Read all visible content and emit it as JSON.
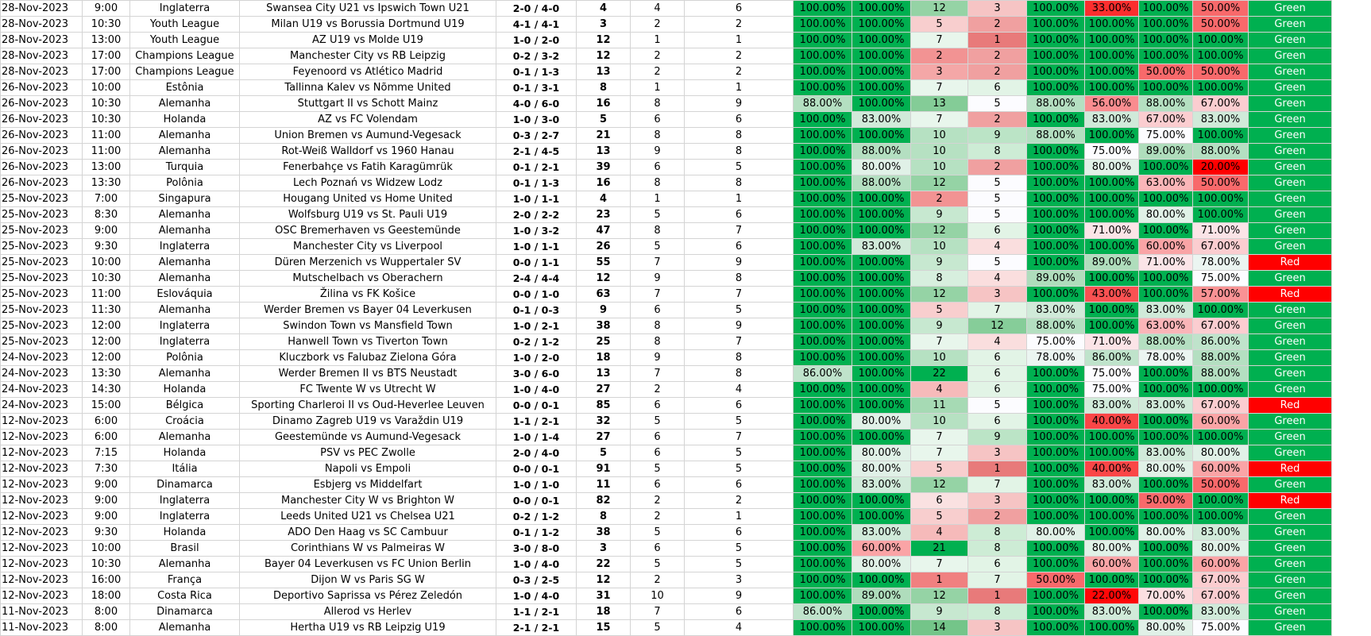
{
  "colors": {
    "green_strong": "#00b050",
    "green_mid": "#63be7b",
    "red_strong": "#ff0000",
    "result_green": "#00b050",
    "result_red": "#ff0000"
  },
  "rows": [
    {
      "date": "28-Nov-2023",
      "time": "9:00",
      "league": "Inglaterra",
      "match": "Swansea City U21 vs Ipswich Town U21",
      "score": "2-0 / 4-0",
      "odd": "4",
      "a": "4",
      "b": "6",
      "p1": "100.00%",
      "p2": "100.00%",
      "n1": "12",
      "n2": "3",
      "p3": "100.00%",
      "p4": "33.00%",
      "p5": "100.00%",
      "p6": "50.00%",
      "result": "Green"
    },
    {
      "date": "28-Nov-2023",
      "time": "10:30",
      "league": "Youth League",
      "match": "Milan U19 vs Borussia Dortmund U19",
      "score": "4-1 / 4-1",
      "odd": "3",
      "a": "2",
      "b": "2",
      "p1": "100.00%",
      "p2": "100.00%",
      "n1": "5",
      "n2": "2",
      "p3": "100.00%",
      "p4": "100.00%",
      "p5": "100.00%",
      "p6": "50.00%",
      "result": "Green"
    },
    {
      "date": "28-Nov-2023",
      "time": "13:00",
      "league": "Youth League",
      "match": "AZ U19 vs Molde U19",
      "score": "1-0 / 2-0",
      "odd": "12",
      "a": "1",
      "b": "1",
      "p1": "100.00%",
      "p2": "100.00%",
      "n1": "7",
      "n2": "1",
      "p3": "100.00%",
      "p4": "100.00%",
      "p5": "100.00%",
      "p6": "100.00%",
      "result": "Green"
    },
    {
      "date": "28-Nov-2023",
      "time": "17:00",
      "league": "Champions League",
      "match": "Manchester City vs RB Leipzig",
      "score": "0-2 / 3-2",
      "odd": "12",
      "a": "2",
      "b": "2",
      "p1": "100.00%",
      "p2": "100.00%",
      "n1": "2",
      "n2": "2",
      "p3": "100.00%",
      "p4": "100.00%",
      "p5": "100.00%",
      "p6": "100.00%",
      "result": "Green"
    },
    {
      "date": "28-Nov-2023",
      "time": "17:00",
      "league": "Champions League",
      "match": "Feyenoord vs Atlético Madrid",
      "score": "0-1 / 1-3",
      "odd": "13",
      "a": "2",
      "b": "2",
      "p1": "100.00%",
      "p2": "100.00%",
      "n1": "3",
      "n2": "2",
      "p3": "100.00%",
      "p4": "100.00%",
      "p5": "50.00%",
      "p6": "50.00%",
      "result": "Green"
    },
    {
      "date": "26-Nov-2023",
      "time": "10:00",
      "league": "Estônia",
      "match": "Tallinna Kalev vs Nõmme United",
      "score": "0-1 / 3-1",
      "odd": "8",
      "a": "1",
      "b": "1",
      "p1": "100.00%",
      "p2": "100.00%",
      "n1": "7",
      "n2": "6",
      "p3": "100.00%",
      "p4": "100.00%",
      "p5": "100.00%",
      "p6": "100.00%",
      "result": "Green"
    },
    {
      "date": "26-Nov-2023",
      "time": "10:30",
      "league": "Alemanha",
      "match": "Stuttgart II vs Schott Mainz",
      "score": "4-0 / 6-0",
      "odd": "16",
      "a": "8",
      "b": "9",
      "p1": "88.00%",
      "p2": "100.00%",
      "n1": "13",
      "n2": "5",
      "p3": "88.00%",
      "p4": "56.00%",
      "p5": "88.00%",
      "p6": "67.00%",
      "result": "Green"
    },
    {
      "date": "26-Nov-2023",
      "time": "10:30",
      "league": "Holanda",
      "match": "AZ vs FC Volendam",
      "score": "1-0 / 3-0",
      "odd": "5",
      "a": "6",
      "b": "6",
      "p1": "100.00%",
      "p2": "83.00%",
      "n1": "7",
      "n2": "2",
      "p3": "100.00%",
      "p4": "83.00%",
      "p5": "67.00%",
      "p6": "83.00%",
      "result": "Green"
    },
    {
      "date": "26-Nov-2023",
      "time": "11:00",
      "league": "Alemanha",
      "match": "Union Bremen vs Aumund-Vegesack",
      "score": "0-3 / 2-7",
      "odd": "21",
      "a": "8",
      "b": "8",
      "p1": "100.00%",
      "p2": "100.00%",
      "n1": "10",
      "n2": "9",
      "p3": "88.00%",
      "p4": "100.00%",
      "p5": "75.00%",
      "p6": "100.00%",
      "result": "Green"
    },
    {
      "date": "26-Nov-2023",
      "time": "11:00",
      "league": "Alemanha",
      "match": "Rot-Weiß Walldorf vs 1960 Hanau",
      "score": "2-1 / 4-5",
      "odd": "13",
      "a": "9",
      "b": "8",
      "p1": "100.00%",
      "p2": "88.00%",
      "n1": "10",
      "n2": "8",
      "p3": "100.00%",
      "p4": "75.00%",
      "p5": "89.00%",
      "p6": "88.00%",
      "result": "Green"
    },
    {
      "date": "26-Nov-2023",
      "time": "13:00",
      "league": "Turquia",
      "match": "Fenerbahçe vs Fatih Karagümrük",
      "score": "0-1 / 2-1",
      "odd": "39",
      "a": "6",
      "b": "5",
      "p1": "100.00%",
      "p2": "80.00%",
      "n1": "10",
      "n2": "2",
      "p3": "100.00%",
      "p4": "80.00%",
      "p5": "100.00%",
      "p6": "20.00%",
      "result": "Green"
    },
    {
      "date": "26-Nov-2023",
      "time": "13:30",
      "league": "Polônia",
      "match": "Lech Poznań vs Widzew Lodz",
      "score": "0-1 / 1-3",
      "odd": "16",
      "a": "8",
      "b": "8",
      "p1": "100.00%",
      "p2": "88.00%",
      "n1": "12",
      "n2": "5",
      "p3": "100.00%",
      "p4": "100.00%",
      "p5": "63.00%",
      "p6": "50.00%",
      "result": "Green"
    },
    {
      "date": "25-Nov-2023",
      "time": "7:00",
      "league": "Singapura",
      "match": "Hougang United vs Home United",
      "score": "1-0 / 1-1",
      "odd": "4",
      "a": "1",
      "b": "1",
      "p1": "100.00%",
      "p2": "100.00%",
      "n1": "2",
      "n2": "5",
      "p3": "100.00%",
      "p4": "100.00%",
      "p5": "100.00%",
      "p6": "100.00%",
      "result": "Green"
    },
    {
      "date": "25-Nov-2023",
      "time": "8:30",
      "league": "Alemanha",
      "match": "Wolfsburg U19 vs St. Pauli U19",
      "score": "2-0 / 2-2",
      "odd": "23",
      "a": "5",
      "b": "6",
      "p1": "100.00%",
      "p2": "100.00%",
      "n1": "9",
      "n2": "5",
      "p3": "100.00%",
      "p4": "100.00%",
      "p5": "80.00%",
      "p6": "100.00%",
      "result": "Green"
    },
    {
      "date": "25-Nov-2023",
      "time": "9:00",
      "league": "Alemanha",
      "match": "OSC Bremerhaven vs Geestemünde",
      "score": "1-0 / 3-2",
      "odd": "47",
      "a": "8",
      "b": "7",
      "p1": "100.00%",
      "p2": "100.00%",
      "n1": "12",
      "n2": "6",
      "p3": "100.00%",
      "p4": "71.00%",
      "p5": "100.00%",
      "p6": "71.00%",
      "result": "Green"
    },
    {
      "date": "25-Nov-2023",
      "time": "9:30",
      "league": "Inglaterra",
      "match": "Manchester City vs Liverpool",
      "score": "1-0 / 1-1",
      "odd": "26",
      "a": "5",
      "b": "6",
      "p1": "100.00%",
      "p2": "83.00%",
      "n1": "10",
      "n2": "4",
      "p3": "100.00%",
      "p4": "100.00%",
      "p5": "60.00%",
      "p6": "67.00%",
      "result": "Green"
    },
    {
      "date": "25-Nov-2023",
      "time": "10:00",
      "league": "Alemanha",
      "match": "Düren Merzenich vs Wuppertaler SV",
      "score": "0-0 / 1-1",
      "odd": "55",
      "a": "7",
      "b": "9",
      "p1": "100.00%",
      "p2": "100.00%",
      "n1": "9",
      "n2": "5",
      "p3": "100.00%",
      "p4": "89.00%",
      "p5": "71.00%",
      "p6": "78.00%",
      "result": "Red"
    },
    {
      "date": "25-Nov-2023",
      "time": "10:30",
      "league": "Alemanha",
      "match": "Mutschelbach vs Oberachern",
      "score": "2-4 / 4-4",
      "odd": "12",
      "a": "9",
      "b": "8",
      "p1": "100.00%",
      "p2": "100.00%",
      "n1": "8",
      "n2": "4",
      "p3": "89.00%",
      "p4": "100.00%",
      "p5": "100.00%",
      "p6": "75.00%",
      "result": "Green"
    },
    {
      "date": "25-Nov-2023",
      "time": "11:00",
      "league": "Eslováquia",
      "match": "Žilina vs FK Košice",
      "score": "0-0 / 1-0",
      "odd": "63",
      "a": "7",
      "b": "7",
      "p1": "100.00%",
      "p2": "100.00%",
      "n1": "12",
      "n2": "3",
      "p3": "100.00%",
      "p4": "43.00%",
      "p5": "100.00%",
      "p6": "57.00%",
      "result": "Red"
    },
    {
      "date": "25-Nov-2023",
      "time": "11:30",
      "league": "Alemanha",
      "match": "Werder Bremen vs Bayer 04 Leverkusen",
      "score": "0-1 / 0-3",
      "odd": "9",
      "a": "6",
      "b": "5",
      "p1": "100.00%",
      "p2": "100.00%",
      "n1": "5",
      "n2": "7",
      "p3": "83.00%",
      "p4": "100.00%",
      "p5": "83.00%",
      "p6": "100.00%",
      "result": "Green"
    },
    {
      "date": "25-Nov-2023",
      "time": "12:00",
      "league": "Inglaterra",
      "match": "Swindon Town vs Mansfield Town",
      "score": "1-0 / 2-1",
      "odd": "38",
      "a": "8",
      "b": "9",
      "p1": "100.00%",
      "p2": "100.00%",
      "n1": "9",
      "n2": "12",
      "p3": "88.00%",
      "p4": "100.00%",
      "p5": "63.00%",
      "p6": "67.00%",
      "result": "Green"
    },
    {
      "date": "25-Nov-2023",
      "time": "12:00",
      "league": "Inglaterra",
      "match": "Hanwell Town vs Tiverton Town",
      "score": "0-2 / 1-2",
      "odd": "25",
      "a": "8",
      "b": "7",
      "p1": "100.00%",
      "p2": "100.00%",
      "n1": "7",
      "n2": "4",
      "p3": "75.00%",
      "p4": "71.00%",
      "p5": "88.00%",
      "p6": "86.00%",
      "result": "Green"
    },
    {
      "date": "24-Nov-2023",
      "time": "12:00",
      "league": "Polônia",
      "match": "Kluczbork vs Falubaz Zielona Góra",
      "score": "1-0 / 2-0",
      "odd": "18",
      "a": "9",
      "b": "8",
      "p1": "100.00%",
      "p2": "100.00%",
      "n1": "10",
      "n2": "6",
      "p3": "78.00%",
      "p4": "86.00%",
      "p5": "78.00%",
      "p6": "88.00%",
      "result": "Green"
    },
    {
      "date": "24-Nov-2023",
      "time": "13:30",
      "league": "Alemanha",
      "match": "Werder Bremen II vs BTS Neustadt",
      "score": "3-0 / 6-0",
      "odd": "13",
      "a": "7",
      "b": "8",
      "p1": "86.00%",
      "p2": "100.00%",
      "n1": "22",
      "n2": "6",
      "p3": "100.00%",
      "p4": "75.00%",
      "p5": "100.00%",
      "p6": "88.00%",
      "result": "Green"
    },
    {
      "date": "24-Nov-2023",
      "time": "14:30",
      "league": "Holanda",
      "match": "FC Twente W vs Utrecht W",
      "score": "1-0 / 4-0",
      "odd": "27",
      "a": "2",
      "b": "4",
      "p1": "100.00%",
      "p2": "100.00%",
      "n1": "4",
      "n2": "6",
      "p3": "100.00%",
      "p4": "75.00%",
      "p5": "100.00%",
      "p6": "100.00%",
      "result": "Green"
    },
    {
      "date": "24-Nov-2023",
      "time": "15:00",
      "league": "Bélgica",
      "match": "Sporting Charleroi II vs Oud-Heverlee Leuven",
      "score": "0-0 / 0-1",
      "odd": "85",
      "a": "6",
      "b": "6",
      "p1": "100.00%",
      "p2": "100.00%",
      "n1": "11",
      "n2": "5",
      "p3": "100.00%",
      "p4": "83.00%",
      "p5": "83.00%",
      "p6": "67.00%",
      "result": "Red"
    },
    {
      "date": "12-Nov-2023",
      "time": "6:00",
      "league": "Croácia",
      "match": "Dinamo Zagreb U19 vs Varaždin U19",
      "score": "1-1 / 2-1",
      "odd": "32",
      "a": "5",
      "b": "5",
      "p1": "100.00%",
      "p2": "80.00%",
      "n1": "10",
      "n2": "6",
      "p3": "100.00%",
      "p4": "40.00%",
      "p5": "100.00%",
      "p6": "60.00%",
      "result": "Green"
    },
    {
      "date": "12-Nov-2023",
      "time": "6:00",
      "league": "Alemanha",
      "match": "Geestemünde vs Aumund-Vegesack",
      "score": "1-0 / 1-4",
      "odd": "27",
      "a": "6",
      "b": "7",
      "p1": "100.00%",
      "p2": "100.00%",
      "n1": "7",
      "n2": "9",
      "p3": "100.00%",
      "p4": "100.00%",
      "p5": "100.00%",
      "p6": "100.00%",
      "result": "Green"
    },
    {
      "date": "12-Nov-2023",
      "time": "7:15",
      "league": "Holanda",
      "match": "PSV vs PEC Zwolle",
      "score": "2-0 / 4-0",
      "odd": "5",
      "a": "6",
      "b": "5",
      "p1": "100.00%",
      "p2": "80.00%",
      "n1": "7",
      "n2": "3",
      "p3": "100.00%",
      "p4": "100.00%",
      "p5": "83.00%",
      "p6": "80.00%",
      "result": "Green"
    },
    {
      "date": "12-Nov-2023",
      "time": "7:30",
      "league": "Itália",
      "match": "Napoli vs Empoli",
      "score": "0-0 / 0-1",
      "odd": "91",
      "a": "5",
      "b": "5",
      "p1": "100.00%",
      "p2": "80.00%",
      "n1": "5",
      "n2": "1",
      "p3": "100.00%",
      "p4": "40.00%",
      "p5": "80.00%",
      "p6": "60.00%",
      "result": "Red"
    },
    {
      "date": "12-Nov-2023",
      "time": "9:00",
      "league": "Dinamarca",
      "match": "Esbjerg vs Middelfart",
      "score": "1-0 / 1-0",
      "odd": "11",
      "a": "6",
      "b": "6",
      "p1": "100.00%",
      "p2": "83.00%",
      "n1": "12",
      "n2": "7",
      "p3": "100.00%",
      "p4": "83.00%",
      "p5": "100.00%",
      "p6": "50.00%",
      "result": "Green"
    },
    {
      "date": "12-Nov-2023",
      "time": "9:00",
      "league": "Inglaterra",
      "match": "Manchester City W vs Brighton W",
      "score": "0-0 / 0-1",
      "odd": "82",
      "a": "2",
      "b": "2",
      "p1": "100.00%",
      "p2": "100.00%",
      "n1": "6",
      "n2": "3",
      "p3": "100.00%",
      "p4": "100.00%",
      "p5": "50.00%",
      "p6": "100.00%",
      "result": "Red"
    },
    {
      "date": "12-Nov-2023",
      "time": "9:00",
      "league": "Inglaterra",
      "match": "Leeds United U21 vs Chelsea U21",
      "score": "0-2 / 1-2",
      "odd": "8",
      "a": "2",
      "b": "1",
      "p1": "100.00%",
      "p2": "100.00%",
      "n1": "5",
      "n2": "2",
      "p3": "100.00%",
      "p4": "100.00%",
      "p5": "100.00%",
      "p6": "100.00%",
      "result": "Green"
    },
    {
      "date": "12-Nov-2023",
      "time": "9:30",
      "league": "Holanda",
      "match": "ADO Den Haag vs SC Cambuur",
      "score": "0-1 / 1-2",
      "odd": "38",
      "a": "5",
      "b": "6",
      "p1": "100.00%",
      "p2": "83.00%",
      "n1": "4",
      "n2": "8",
      "p3": "80.00%",
      "p4": "100.00%",
      "p5": "80.00%",
      "p6": "83.00%",
      "result": "Green"
    },
    {
      "date": "12-Nov-2023",
      "time": "10:00",
      "league": "Brasil",
      "match": "Corinthians W vs Palmeiras W",
      "score": "3-0 / 8-0",
      "odd": "3",
      "a": "6",
      "b": "5",
      "p1": "100.00%",
      "p2": "60.00%",
      "n1": "21",
      "n2": "8",
      "p3": "100.00%",
      "p4": "80.00%",
      "p5": "100.00%",
      "p6": "80.00%",
      "result": "Green"
    },
    {
      "date": "12-Nov-2023",
      "time": "10:30",
      "league": "Alemanha",
      "match": "Bayer 04 Leverkusen vs FC Union Berlin",
      "score": "1-0 / 4-0",
      "odd": "22",
      "a": "5",
      "b": "5",
      "p1": "100.00%",
      "p2": "80.00%",
      "n1": "7",
      "n2": "6",
      "p3": "100.00%",
      "p4": "60.00%",
      "p5": "100.00%",
      "p6": "60.00%",
      "result": "Green"
    },
    {
      "date": "12-Nov-2023",
      "time": "16:00",
      "league": "França",
      "match": "Dijon W vs Paris SG W",
      "score": "0-3 / 2-5",
      "odd": "12",
      "a": "2",
      "b": "3",
      "p1": "100.00%",
      "p2": "100.00%",
      "n1": "1",
      "n2": "7",
      "p3": "50.00%",
      "p4": "100.00%",
      "p5": "100.00%",
      "p6": "67.00%",
      "result": "Green"
    },
    {
      "date": "12-Nov-2023",
      "time": "18:00",
      "league": "Costa Rica",
      "match": "Deportivo Saprissa vs Pérez Zeledón",
      "score": "1-0 / 4-0",
      "odd": "31",
      "a": "10",
      "b": "9",
      "p1": "100.00%",
      "p2": "89.00%",
      "n1": "12",
      "n2": "1",
      "p3": "100.00%",
      "p4": "22.00%",
      "p5": "70.00%",
      "p6": "67.00%",
      "result": "Green"
    },
    {
      "date": "11-Nov-2023",
      "time": "8:00",
      "league": "Dinamarca",
      "match": "Allerod vs Herlev",
      "score": "1-1 / 2-1",
      "odd": "18",
      "a": "7",
      "b": "6",
      "p1": "86.00%",
      "p2": "100.00%",
      "n1": "9",
      "n2": "8",
      "p3": "100.00%",
      "p4": "83.00%",
      "p5": "100.00%",
      "p6": "83.00%",
      "result": "Green"
    },
    {
      "date": "11-Nov-2023",
      "time": "8:00",
      "league": "Alemanha",
      "match": "Hertha U19 vs RB Leipzig U19",
      "score": "2-1 / 2-1",
      "odd": "15",
      "a": "5",
      "b": "4",
      "p1": "100.00%",
      "p2": "100.00%",
      "n1": "14",
      "n2": "3",
      "p3": "100.00%",
      "p4": "100.00%",
      "p5": "80.00%",
      "p6": "75.00%",
      "result": "Green"
    }
  ]
}
